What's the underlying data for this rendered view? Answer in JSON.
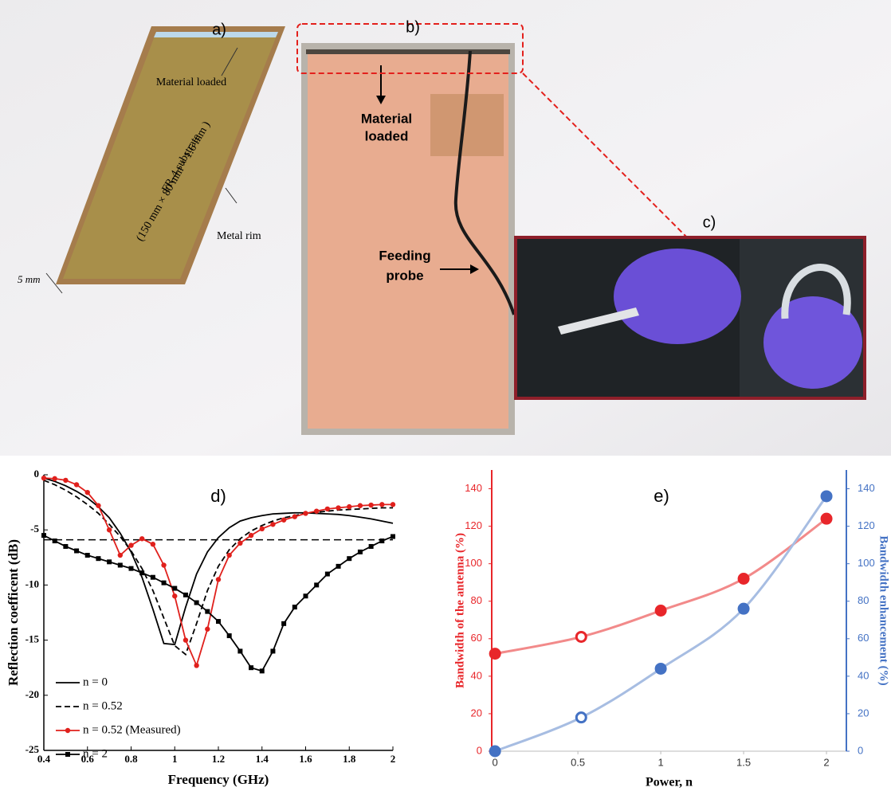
{
  "panels": {
    "a": {
      "label": "a)",
      "material": "Material loaded",
      "substrate": "FR-4 substrate",
      "dimensions": "(150 mm × 80 mm × 1.6 mm )",
      "rim": "Metal rim",
      "width": "5 mm"
    },
    "b": {
      "label": "b)",
      "material": [
        "Material",
        "loaded"
      ],
      "probe": [
        "Feeding",
        "probe"
      ]
    },
    "c": {
      "label": "c)"
    }
  },
  "chart_data": [
    {
      "type": "line",
      "title": "d)",
      "xlabel": "Frequency (GHz)",
      "ylabel": "Reflection coefficent (dB)",
      "x": [
        0.4,
        0.45,
        0.5,
        0.55,
        0.6,
        0.65,
        0.7,
        0.75,
        0.8,
        0.85,
        0.9,
        0.95,
        1.0,
        1.05,
        1.1,
        1.15,
        1.2,
        1.25,
        1.3,
        1.35,
        1.4,
        1.45,
        1.5,
        1.55,
        1.6,
        1.65,
        1.7,
        1.75,
        1.8,
        1.85,
        1.9,
        1.95,
        2.0
      ],
      "xlim": [
        0.4,
        2
      ],
      "xticks": [
        0.4,
        0.6,
        0.8,
        1,
        1.2,
        1.4,
        1.6,
        1.8,
        2
      ],
      "ylim": [
        -25,
        0
      ],
      "yticks": [
        0,
        -5,
        -10,
        -15,
        -20,
        -25
      ],
      "reference_line": -5.9,
      "legend": "lower left",
      "series": [
        {
          "name": "n = 0",
          "color": "#000000",
          "dash": false,
          "marker": "none",
          "values": [
            -0.3,
            -0.6,
            -1.0,
            -1.5,
            -2.1,
            -2.9,
            -3.9,
            -5.3,
            -7.0,
            -9.3,
            -12.2,
            -15.3,
            -15.4,
            -12.0,
            -9.0,
            -7.0,
            -5.7,
            -4.8,
            -4.2,
            -3.9,
            -3.7,
            -3.55,
            -3.5,
            -3.45,
            -3.45,
            -3.5,
            -3.55,
            -3.6,
            -3.7,
            -3.85,
            -4.0,
            -4.2,
            -4.4
          ]
        },
        {
          "name": "n = 0.52",
          "color": "#000000",
          "dash": true,
          "marker": "none",
          "values": [
            -0.5,
            -0.9,
            -1.4,
            -2.0,
            -2.7,
            -3.5,
            -4.5,
            -5.6,
            -6.9,
            -8.5,
            -10.5,
            -13.0,
            -15.5,
            -16.3,
            -13.5,
            -10.5,
            -8.3,
            -6.8,
            -5.8,
            -5.1,
            -4.6,
            -4.2,
            -3.9,
            -3.7,
            -3.5,
            -3.4,
            -3.3,
            -3.2,
            -3.15,
            -3.1,
            -3.05,
            -3.0,
            -3.0
          ]
        },
        {
          "name": "n = 0.52 (Measured)",
          "color": "#e0201c",
          "dash": false,
          "marker": "circle",
          "values": [
            -0.3,
            -0.35,
            -0.5,
            -0.9,
            -1.6,
            -2.8,
            -5.0,
            -7.3,
            -6.4,
            -5.8,
            -6.3,
            -8.2,
            -11.0,
            -15.0,
            -17.3,
            -14.0,
            -9.5,
            -7.3,
            -6.2,
            -5.5,
            -4.9,
            -4.5,
            -4.1,
            -3.8,
            -3.5,
            -3.3,
            -3.1,
            -3.0,
            -2.9,
            -2.8,
            -2.75,
            -2.7,
            -2.7
          ]
        },
        {
          "name": "n = 2",
          "color": "#000000",
          "dash": false,
          "marker": "square",
          "values": [
            -5.5,
            -6.0,
            -6.5,
            -6.9,
            -7.3,
            -7.6,
            -7.9,
            -8.2,
            -8.5,
            -8.9,
            -9.3,
            -9.8,
            -10.3,
            -10.9,
            -11.6,
            -12.4,
            -13.3,
            -14.6,
            -16.0,
            -17.5,
            -17.8,
            -16.0,
            -13.5,
            -12.0,
            -11.0,
            -10.0,
            -9.0,
            -8.3,
            -7.6,
            -7.0,
            -6.5,
            -6.0,
            -5.6
          ]
        }
      ]
    },
    {
      "type": "scatter",
      "title": "e)",
      "xlabel": "Power, n",
      "ylabel": "Bandwidth of the antenna (%)",
      "y2label": "Bandwidth enhancement (%)",
      "x": [
        0,
        0.52,
        1,
        1.5,
        2
      ],
      "xlim": [
        -0.02,
        2.12
      ],
      "xticks": [
        0,
        0.5,
        1,
        1.5,
        2
      ],
      "ylim": [
        0,
        150
      ],
      "yticks": [
        0,
        20,
        40,
        60,
        80,
        100,
        120,
        140
      ],
      "y2lim": [
        0,
        150
      ],
      "y2ticks": [
        0,
        20,
        40,
        60,
        80,
        100,
        120,
        140
      ],
      "open_point_index": 1,
      "series": [
        {
          "name": "Bandwidth of the antenna",
          "color": "#e8262a",
          "fit_color": "#f28a8a",
          "values": [
            52,
            61,
            75,
            92,
            124
          ]
        },
        {
          "name": "Bandwidth enhancement",
          "color": "#4472c4",
          "fit_color": "#a7bde2",
          "axis": "y2",
          "values": [
            0,
            18,
            44,
            76,
            136
          ]
        }
      ]
    }
  ]
}
